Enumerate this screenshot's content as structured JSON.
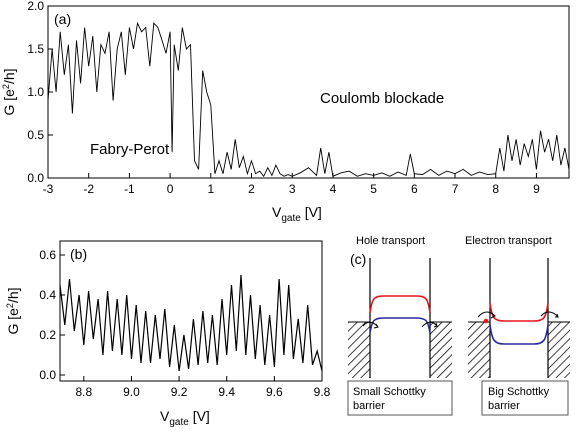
{
  "chart_data": [
    {
      "id": "a",
      "type": "line",
      "panel_label": "(a)",
      "xlabel": "V",
      "xlabel_sub": "gate",
      "xlabel_unit": " [V]",
      "ylabel": "G [e",
      "ylabel_sup": "2",
      "ylabel_unit": "/h]",
      "xlim": [
        -3,
        9.8
      ],
      "ylim": [
        0,
        2.0
      ],
      "xticks": [
        -3,
        -2,
        -1,
        0,
        1,
        2,
        3,
        4,
        5,
        6,
        7,
        8,
        9
      ],
      "yticks": [
        0.0,
        0.5,
        1.0,
        1.5,
        2.0
      ],
      "xtick_labels": [
        "-3",
        "-2",
        "-1",
        "0",
        "1",
        "2",
        "3",
        "4",
        "5",
        "6",
        "7",
        "8",
        "9"
      ],
      "ytick_labels": [
        "0.0",
        "0.5",
        "1.0",
        "1.5",
        "2.0"
      ],
      "annotations": [
        "Fabry-Perot",
        "Coulomb blockade"
      ],
      "x": [
        -3.0,
        -2.9,
        -2.8,
        -2.7,
        -2.6,
        -2.5,
        -2.4,
        -2.3,
        -2.2,
        -2.1,
        -2.0,
        -1.9,
        -1.8,
        -1.7,
        -1.6,
        -1.5,
        -1.4,
        -1.3,
        -1.2,
        -1.1,
        -1.0,
        -0.9,
        -0.8,
        -0.7,
        -0.6,
        -0.5,
        -0.4,
        -0.3,
        -0.2,
        -0.1,
        0.0,
        0.05,
        0.1,
        0.2,
        0.3,
        0.4,
        0.5,
        0.6,
        0.7,
        0.8,
        0.9,
        1.0,
        1.1,
        1.2,
        1.3,
        1.4,
        1.5,
        1.6,
        1.7,
        1.8,
        1.9,
        2.0,
        2.1,
        2.2,
        2.3,
        2.4,
        2.5,
        2.6,
        2.7,
        2.8,
        2.9,
        3.0,
        3.2,
        3.4,
        3.6,
        3.7,
        3.8,
        3.9,
        4.0,
        4.2,
        4.4,
        4.6,
        4.8,
        5.0,
        5.2,
        5.4,
        5.6,
        5.8,
        5.9,
        6.0,
        6.2,
        6.4,
        6.6,
        6.8,
        7.0,
        7.2,
        7.4,
        7.6,
        7.8,
        8.0,
        8.1,
        8.2,
        8.3,
        8.4,
        8.5,
        8.6,
        8.7,
        8.8,
        8.9,
        9.0,
        9.1,
        9.2,
        9.3,
        9.4,
        9.5,
        9.6,
        9.7,
        9.8
      ],
      "y": [
        0.9,
        1.5,
        1.0,
        1.7,
        1.2,
        1.55,
        0.75,
        1.6,
        1.1,
        1.75,
        1.3,
        1.65,
        1.0,
        1.55,
        1.45,
        1.7,
        0.9,
        1.5,
        1.7,
        1.2,
        1.75,
        1.5,
        1.8,
        1.7,
        1.75,
        1.3,
        1.8,
        1.75,
        1.6,
        1.45,
        1.7,
        0.3,
        1.55,
        1.25,
        1.75,
        1.5,
        1.55,
        0.2,
        0.1,
        1.25,
        1.0,
        0.85,
        0.05,
        0.2,
        0.05,
        0.3,
        0.1,
        0.45,
        0.12,
        0.25,
        0.05,
        0.2,
        0.05,
        0.08,
        0.02,
        0.12,
        0.03,
        0.15,
        0.05,
        0.02,
        0.04,
        0.02,
        0.06,
        0.12,
        0.03,
        0.35,
        0.05,
        0.3,
        0.02,
        0.06,
        0.08,
        0.02,
        0.05,
        0.03,
        0.06,
        0.02,
        0.07,
        0.03,
        0.28,
        0.05,
        0.04,
        0.1,
        0.03,
        0.08,
        0.05,
        0.1,
        0.03,
        0.07,
        0.04,
        0.05,
        0.35,
        0.08,
        0.5,
        0.2,
        0.45,
        0.15,
        0.4,
        0.25,
        0.45,
        0.1,
        0.55,
        0.3,
        0.45,
        0.2,
        0.5,
        0.15,
        0.35,
        0.1
      ]
    },
    {
      "id": "b",
      "type": "line",
      "panel_label": "(b)",
      "xlabel": "V",
      "xlabel_sub": "gate",
      "xlabel_unit": " [V]",
      "ylabel": "G [e",
      "ylabel_sup": "2",
      "ylabel_unit": "/h]",
      "xlim": [
        8.7,
        9.8
      ],
      "ylim": [
        -0.03,
        0.67
      ],
      "xticks": [
        8.8,
        9.0,
        9.2,
        9.4,
        9.6,
        9.8
      ],
      "yticks": [
        0.0,
        0.2,
        0.4,
        0.6
      ],
      "xtick_labels": [
        "8.8",
        "9.0",
        "9.2",
        "9.4",
        "9.6",
        "9.8"
      ],
      "ytick_labels": [
        "0.0",
        "0.2",
        "0.4",
        "0.6"
      ],
      "x": [
        8.7,
        8.72,
        8.74,
        8.76,
        8.78,
        8.8,
        8.82,
        8.84,
        8.86,
        8.88,
        8.9,
        8.92,
        8.94,
        8.96,
        8.98,
        9.0,
        9.02,
        9.04,
        9.06,
        9.08,
        9.1,
        9.12,
        9.14,
        9.16,
        9.18,
        9.2,
        9.22,
        9.24,
        9.26,
        9.28,
        9.3,
        9.32,
        9.34,
        9.36,
        9.38,
        9.4,
        9.42,
        9.44,
        9.46,
        9.48,
        9.5,
        9.52,
        9.54,
        9.56,
        9.58,
        9.6,
        9.62,
        9.64,
        9.66,
        9.68,
        9.7,
        9.72,
        9.74,
        9.76,
        9.78,
        9.8
      ],
      "y": [
        0.45,
        0.25,
        0.48,
        0.22,
        0.4,
        0.15,
        0.42,
        0.18,
        0.38,
        0.1,
        0.42,
        0.12,
        0.38,
        0.1,
        0.4,
        0.08,
        0.35,
        0.06,
        0.32,
        0.06,
        0.3,
        0.08,
        0.33,
        0.04,
        0.25,
        0.02,
        0.2,
        0.03,
        0.28,
        0.05,
        0.32,
        0.06,
        0.3,
        0.05,
        0.38,
        0.1,
        0.45,
        0.12,
        0.5,
        0.1,
        0.4,
        0.08,
        0.35,
        0.05,
        0.3,
        0.04,
        0.48,
        0.1,
        0.45,
        0.08,
        0.28,
        0.06,
        0.35,
        0.05,
        0.12,
        0.02
      ]
    }
  ],
  "schematic": {
    "panel_label": "(c)",
    "hole_title": "Hole transport",
    "electron_title": "Electron transport",
    "hole_caption_line1": "Small Schottky",
    "hole_caption_line2": "barrier",
    "electron_caption_line1": "Big Schottky",
    "electron_caption_line2": "barrier",
    "conduction_color": "#e8161b",
    "valence_color": "#2a2a9e"
  }
}
